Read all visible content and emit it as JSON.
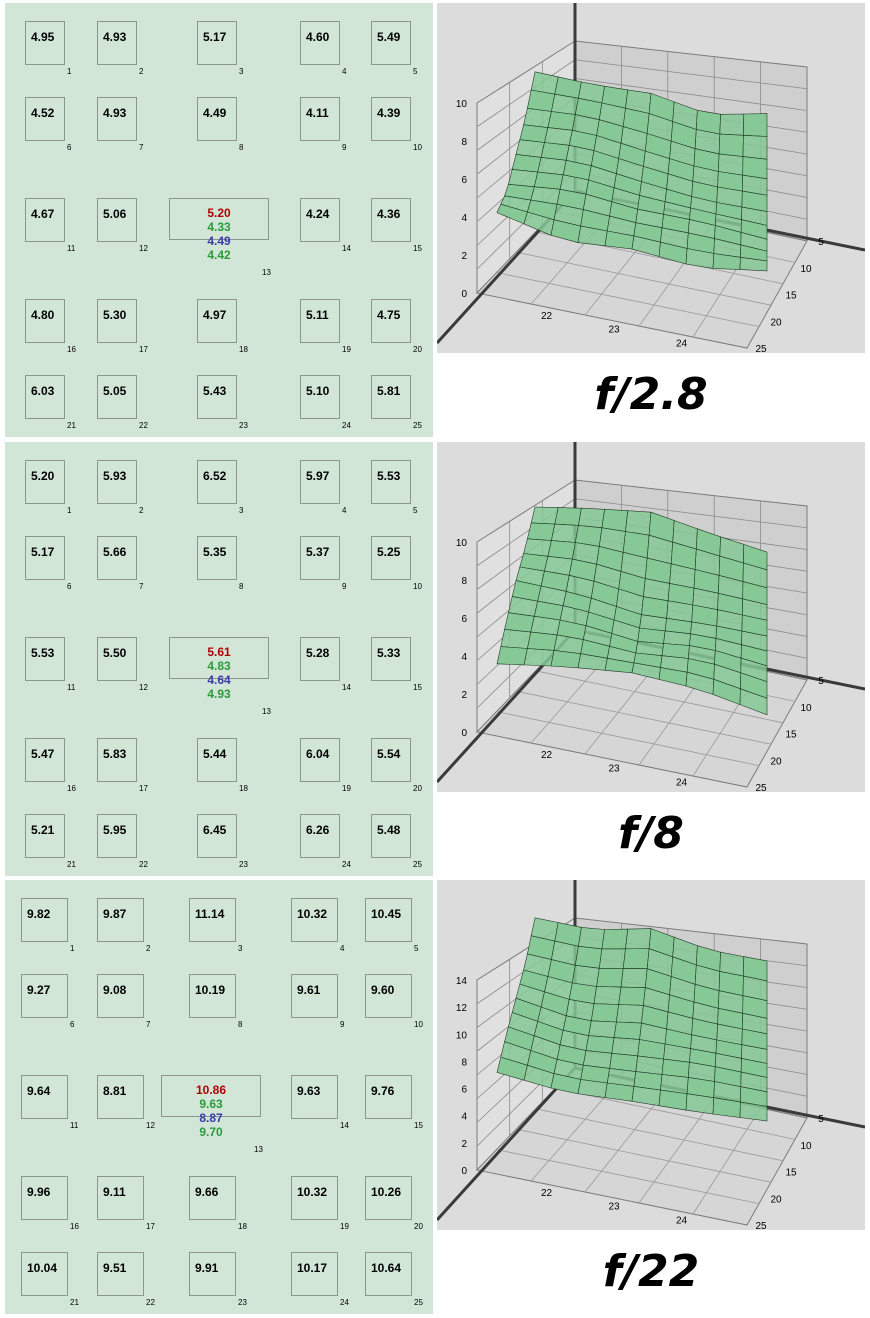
{
  "chart_data": [
    {
      "type": "heatmap",
      "label": "f/2.8",
      "zone_numbers": [
        "1",
        "2",
        "3",
        "4",
        "5",
        "6",
        "7",
        "8",
        "9",
        "10",
        "11",
        "12",
        "13",
        "14",
        "15",
        "16",
        "17",
        "18",
        "19",
        "20",
        "21",
        "22",
        "23",
        "24",
        "25"
      ],
      "values": [
        "4.95",
        "4.93",
        "5.17",
        "4.60",
        "5.49",
        "4.52",
        "4.93",
        "4.49",
        "4.11",
        "4.39",
        "4.67",
        "5.06",
        "",
        "4.24",
        "4.36",
        "4.80",
        "5.30",
        "4.97",
        "5.11",
        "4.75",
        "6.03",
        "5.05",
        "5.43",
        "5.10",
        "5.81"
      ],
      "center_values": [
        "5.20",
        "4.33",
        "4.49",
        "4.42"
      ],
      "surface": {
        "y_ticks": [
          "0",
          "2",
          "4",
          "6",
          "8",
          "10"
        ],
        "x_ticks": [
          "22",
          "23",
          "24"
        ],
        "depth_ticks": [
          "5",
          "10",
          "15",
          "20",
          "25"
        ],
        "ylim": [
          0,
          10
        ]
      }
    },
    {
      "type": "heatmap",
      "label": "f/8",
      "zone_numbers": [
        "1",
        "2",
        "3",
        "4",
        "5",
        "6",
        "7",
        "8",
        "9",
        "10",
        "11",
        "12",
        "13",
        "14",
        "15",
        "16",
        "17",
        "18",
        "19",
        "20",
        "21",
        "22",
        "23",
        "24",
        "25"
      ],
      "values": [
        "5.20",
        "5.93",
        "6.52",
        "5.97",
        "5.53",
        "5.17",
        "5.66",
        "5.35",
        "5.37",
        "5.25",
        "5.53",
        "5.50",
        "",
        "5.28",
        "5.33",
        "5.47",
        "5.83",
        "5.44",
        "6.04",
        "5.54",
        "5.21",
        "5.95",
        "6.45",
        "6.26",
        "5.48"
      ],
      "center_values": [
        "5.61",
        "4.83",
        "4.64",
        "4.93"
      ],
      "surface": {
        "y_ticks": [
          "0",
          "2",
          "4",
          "6",
          "8",
          "10"
        ],
        "x_ticks": [
          "22",
          "23",
          "24"
        ],
        "depth_ticks": [
          "5",
          "10",
          "15",
          "20",
          "25"
        ],
        "ylim": [
          0,
          10
        ]
      }
    },
    {
      "type": "heatmap",
      "label": "f/22",
      "zone_numbers": [
        "1",
        "2",
        "3",
        "4",
        "5",
        "6",
        "7",
        "8",
        "9",
        "10",
        "11",
        "12",
        "13",
        "14",
        "15",
        "16",
        "17",
        "18",
        "19",
        "20",
        "21",
        "22",
        "23",
        "24",
        "25"
      ],
      "values": [
        "9.82",
        "9.87",
        "11.14",
        "10.32",
        "10.45",
        "9.27",
        "9.08",
        "10.19",
        "9.61",
        "9.60",
        "9.64",
        "8.81",
        "",
        "9.63",
        "9.76",
        "9.96",
        "9.11",
        "9.66",
        "10.32",
        "10.26",
        "10.04",
        "9.51",
        "9.91",
        "10.17",
        "10.64"
      ],
      "center_values": [
        "10.86",
        "9.63",
        "8.87",
        "9.70"
      ],
      "surface": {
        "y_ticks": [
          "0",
          "2",
          "4",
          "6",
          "8",
          "10",
          "12",
          "14"
        ],
        "x_ticks": [
          "22",
          "23",
          "24"
        ],
        "depth_ticks": [
          "5",
          "10",
          "15",
          "20",
          "25"
        ],
        "ylim": [
          0,
          14
        ]
      }
    }
  ],
  "colors": {
    "grid_background": "#d2e6d8",
    "center_value_colors": [
      "#b00000",
      "#2a9a3a",
      "#3a3aaa",
      "#2a9a3a"
    ],
    "plot_background": "#dcdcdc",
    "surface_fill": "#86c896",
    "surface_line": "#1e3a24"
  }
}
